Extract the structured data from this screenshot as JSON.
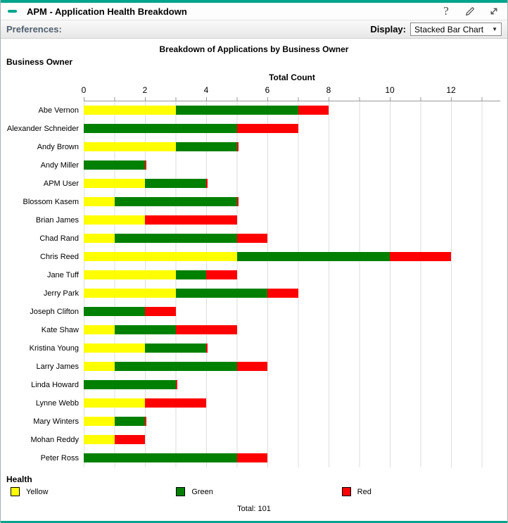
{
  "colors": {
    "accent": "#00A58C",
    "yellow": "#FFFF00",
    "green": "#008000",
    "red": "#FF0000",
    "gridline": "#DEDEDE"
  },
  "window": {
    "title": "APM - Application Health Breakdown",
    "icons": [
      "collapse-minus",
      "help-question",
      "edit-pencil",
      "expand-diagonal-arrows"
    ]
  },
  "toolbar": {
    "preferences_label": "Preferences:",
    "display_label": "Display:",
    "display_value": "Stacked Bar Chart",
    "dropdown_arrow": "▼"
  },
  "chart_data": {
    "type": "bar",
    "orientation": "horizontal",
    "stacked": true,
    "title": "Breakdown of Applications by Business Owner",
    "y_axis_title": "Business Owner",
    "x_axis_title": "Total Count",
    "x_ticks": [
      0,
      2,
      4,
      6,
      8,
      10,
      12
    ],
    "xlim": [
      0,
      13.6
    ],
    "grid": true,
    "categories": [
      "Abe Vernon",
      "Alexander Schneider",
      "Andy Brown",
      "Andy Miller",
      "APM User",
      "Blossom Kasem",
      "Brian James",
      "Chad Rand",
      "Chris Reed",
      "Jane Tuff",
      "Jerry Park",
      "Joseph Clifton",
      "Kate Shaw",
      "Kristina Young",
      "Larry James",
      "Linda Howard",
      "Lynne Webb",
      "Mary Winters",
      "Mohan Reddy",
      "Peter Ross"
    ],
    "series": [
      {
        "name": "Yellow",
        "color": "#FFFF00",
        "values": [
          3,
          0,
          3,
          0,
          2,
          1,
          2,
          1,
          5,
          3,
          3,
          0,
          1,
          2,
          1,
          0,
          2,
          1,
          1,
          0
        ]
      },
      {
        "name": "Green",
        "color": "#008000",
        "values": [
          4,
          5,
          2,
          2,
          2,
          4,
          0,
          4,
          5,
          1,
          3,
          2,
          2,
          2,
          4,
          3,
          0,
          1,
          0,
          5
        ]
      },
      {
        "name": "Red",
        "color": "#FF0000",
        "values": [
          1,
          2,
          0,
          0,
          0,
          0,
          3,
          1,
          2,
          1,
          1,
          1,
          2,
          0,
          1,
          0,
          2,
          0,
          1,
          1
        ]
      }
    ],
    "row_totals": [
      8,
      7,
      5,
      2,
      4,
      5,
      5,
      6,
      12,
      5,
      7,
      3,
      5,
      4,
      6,
      3,
      4,
      2,
      2,
      6
    ],
    "legend_title": "Health",
    "legend_position": "bottom",
    "footer": "Total: 101"
  }
}
